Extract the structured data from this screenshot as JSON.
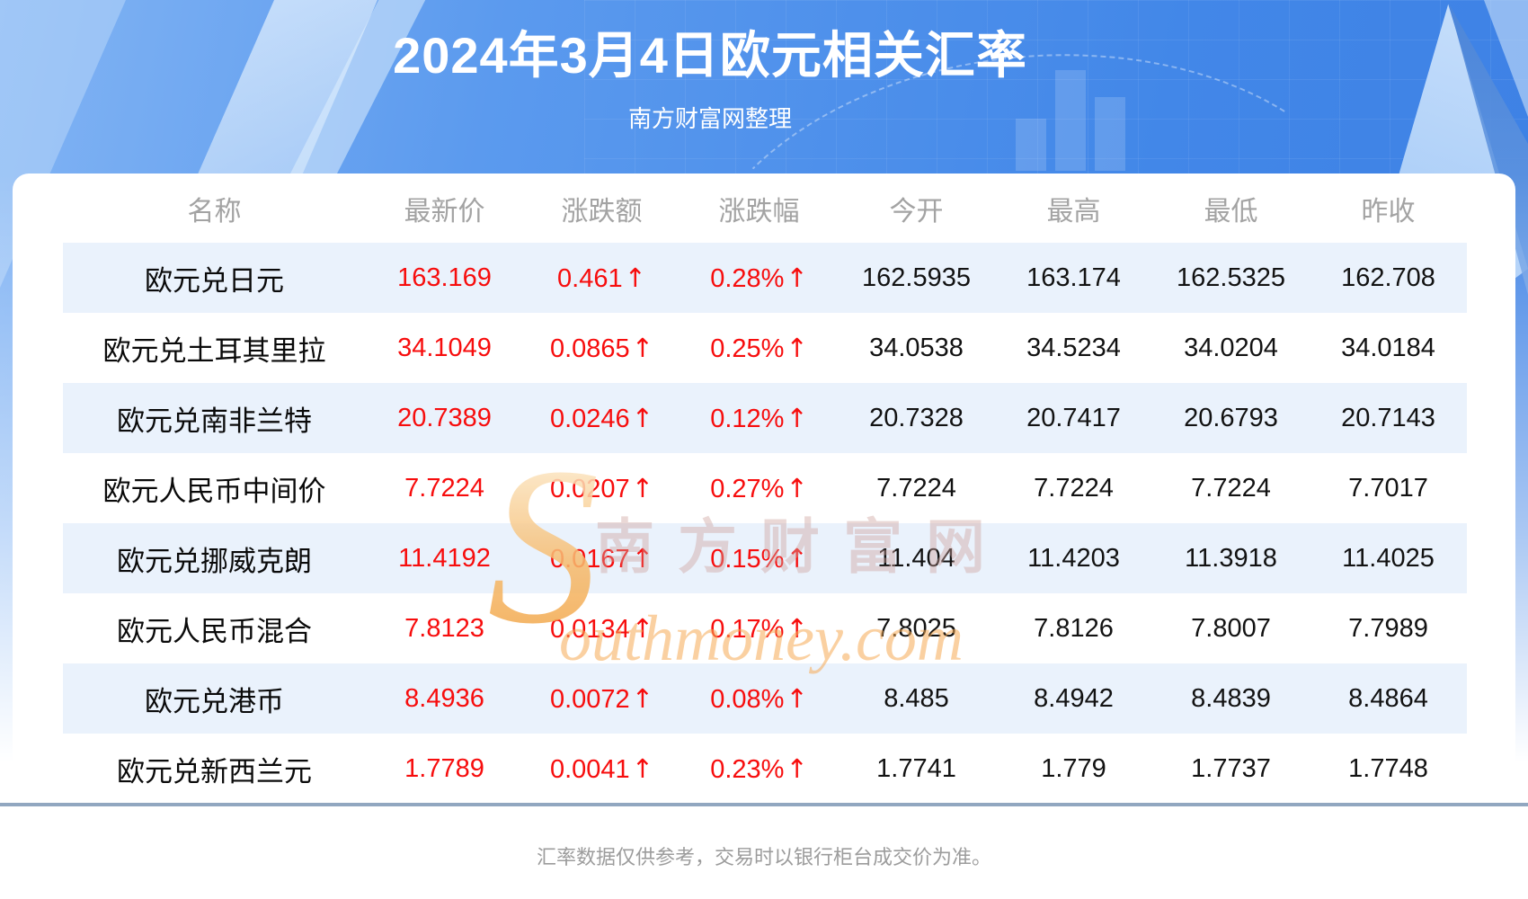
{
  "header": {
    "title": "2024年3月4日欧元相关汇率",
    "subtitle": "南方财富网整理"
  },
  "table": {
    "columns": [
      "名称",
      "最新价",
      "涨跌额",
      "涨跌幅",
      "今开",
      "最高",
      "最低",
      "昨收"
    ],
    "up_arrow": "↑",
    "rows": [
      {
        "name": "欧元兑日元",
        "latest": "163.169",
        "change": "0.461",
        "change_pct": "0.28%",
        "open": "162.5935",
        "high": "163.174",
        "low": "162.5325",
        "prev_close": "162.708"
      },
      {
        "name": "欧元兑土耳其里拉",
        "latest": "34.1049",
        "change": "0.0865",
        "change_pct": "0.25%",
        "open": "34.0538",
        "high": "34.5234",
        "low": "34.0204",
        "prev_close": "34.0184"
      },
      {
        "name": "欧元兑南非兰特",
        "latest": "20.7389",
        "change": "0.0246",
        "change_pct": "0.12%",
        "open": "20.7328",
        "high": "20.7417",
        "low": "20.6793",
        "prev_close": "20.7143"
      },
      {
        "name": "欧元人民币中间价",
        "latest": "7.7224",
        "change": "0.0207",
        "change_pct": "0.27%",
        "open": "7.7224",
        "high": "7.7224",
        "low": "7.7224",
        "prev_close": "7.7017"
      },
      {
        "name": "欧元兑挪威克朗",
        "latest": "11.4192",
        "change": "0.0167",
        "change_pct": "0.15%",
        "open": "11.404",
        "high": "11.4203",
        "low": "11.3918",
        "prev_close": "11.4025"
      },
      {
        "name": "欧元人民币混合",
        "latest": "7.8123",
        "change": "0.0134",
        "change_pct": "0.17%",
        "open": "7.8025",
        "high": "7.8126",
        "low": "7.8007",
        "prev_close": "7.7989"
      },
      {
        "name": "欧元兑港币",
        "latest": "8.4936",
        "change": "0.0072",
        "change_pct": "0.08%",
        "open": "8.485",
        "high": "8.4942",
        "low": "8.4839",
        "prev_close": "8.4864"
      },
      {
        "name": "欧元兑新西兰元",
        "latest": "1.7789",
        "change": "0.0041",
        "change_pct": "0.23%",
        "open": "1.7741",
        "high": "1.779",
        "low": "1.7737",
        "prev_close": "1.7748"
      }
    ]
  },
  "watermark": {
    "logo_initial": "S",
    "cn": "南方财富网",
    "en_rest": "outhmoney.com"
  },
  "footer": {
    "disclaimer": "汇率数据仅供参考，交易时以银行柜台成交价为准。"
  },
  "colors": {
    "banner_blue": "#4287e8",
    "row_alt_blue": "#eaf2fc",
    "value_red": "#f70d0d",
    "header_gray": "#a3a3a3",
    "divider_blue_gray": "#91a7c0",
    "watermark_orange": "#f6b969"
  }
}
